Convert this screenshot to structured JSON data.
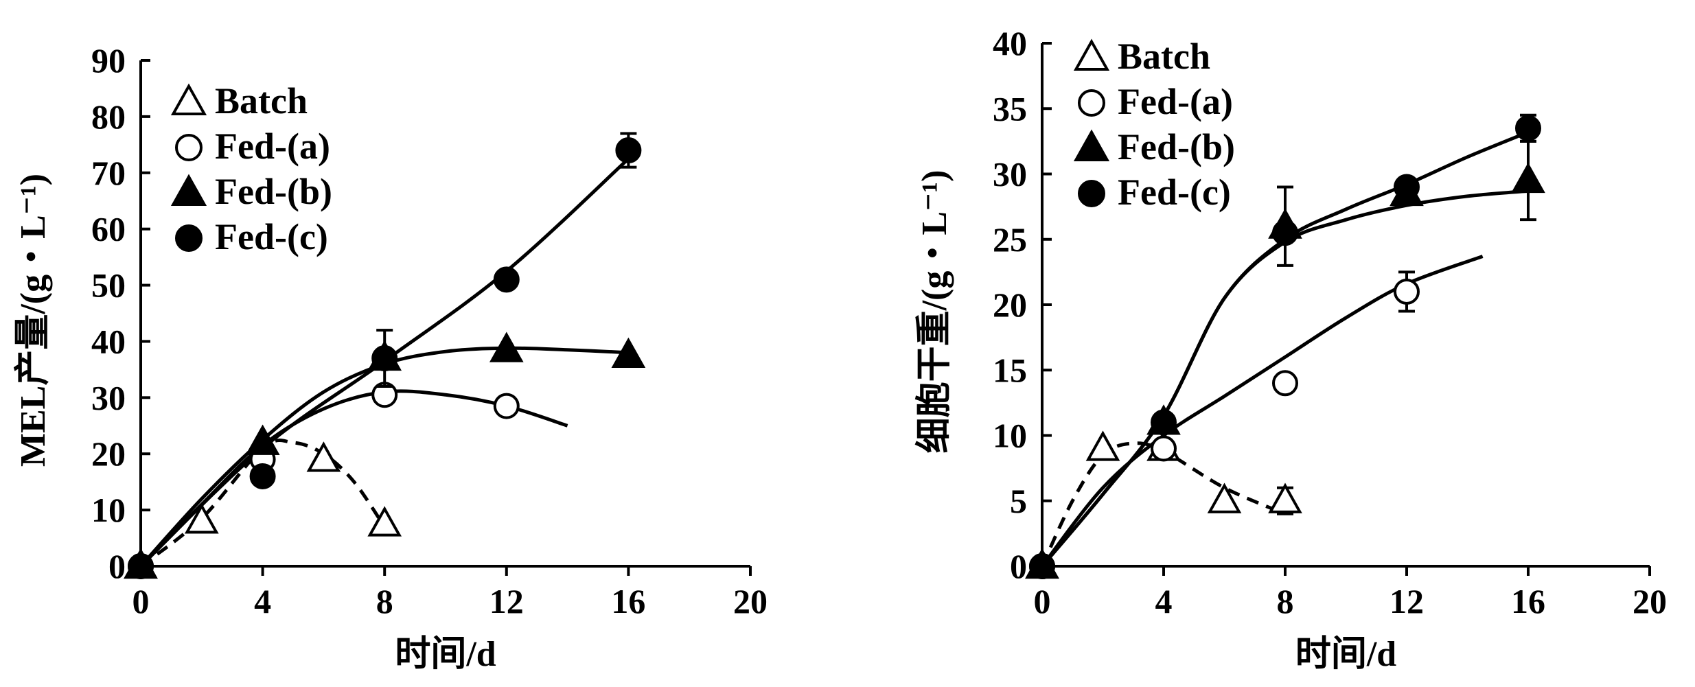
{
  "chart_data": [
    {
      "type": "scatter",
      "xlabel": "时间/d",
      "ylabel": "MEL产量/(g・L⁻¹)",
      "xlim": [
        0,
        20
      ],
      "ylim": [
        0,
        90
      ],
      "xticks": [
        0,
        4,
        8,
        12,
        16,
        20
      ],
      "yticks": [
        0,
        10,
        20,
        30,
        40,
        50,
        60,
        70,
        80,
        90
      ],
      "grid": false,
      "legend_position": "top-left",
      "series": [
        {
          "name": "Batch",
          "marker": "triangle-open",
          "x": [
            0,
            2,
            4,
            6,
            8
          ],
          "y": [
            0,
            8,
            22,
            19,
            7.5
          ],
          "error": [
            0,
            0,
            0,
            0,
            0
          ],
          "fit_line": "dashed",
          "fit": [
            [
              0,
              0
            ],
            [
              2,
              8.5
            ],
            [
              4,
              21
            ],
            [
              5,
              22
            ],
            [
              6,
              20
            ],
            [
              7,
              15
            ],
            [
              8,
              7
            ]
          ]
        },
        {
          "name": "Fed-(a)",
          "marker": "circle-open",
          "x": [
            0,
            4,
            8,
            12
          ],
          "y": [
            0,
            19,
            30.5,
            28.5
          ],
          "error": [
            0,
            0,
            0,
            0
          ],
          "fit_line": "solid",
          "fit": [
            [
              0,
              0
            ],
            [
              2,
              11
            ],
            [
              4,
              21.5
            ],
            [
              6,
              28
            ],
            [
              8,
              31
            ],
            [
              10,
              30.5
            ],
            [
              12,
              28.5
            ],
            [
              14,
              25
            ]
          ]
        },
        {
          "name": "Fed-(b)",
          "marker": "triangle-filled",
          "x": [
            0,
            4,
            8,
            12,
            16
          ],
          "y": [
            0,
            22,
            37,
            38.5,
            37.5
          ],
          "error": [
            0,
            0,
            0,
            0,
            0
          ],
          "fit_line": "solid",
          "fit": [
            [
              0,
              0
            ],
            [
              2,
              12
            ],
            [
              4,
              22.5
            ],
            [
              6,
              31
            ],
            [
              8,
              36
            ],
            [
              10,
              38.2
            ],
            [
              12,
              38.8
            ],
            [
              14,
              38.5
            ],
            [
              16,
              38
            ]
          ]
        },
        {
          "name": "Fed-(c)",
          "marker": "circle-filled",
          "x": [
            0,
            4,
            8,
            12,
            16
          ],
          "y": [
            0,
            16,
            37,
            51,
            74
          ],
          "error": [
            0,
            0,
            5,
            0,
            3
          ],
          "fit_line": "solid",
          "fit": [
            [
              0,
              0
            ],
            [
              4,
              21
            ],
            [
              8,
              36.5
            ],
            [
              12,
              52.5
            ],
            [
              16,
              72.5
            ]
          ]
        }
      ]
    },
    {
      "type": "scatter",
      "xlabel": "时间/d",
      "ylabel": "细胞干重/(g・L⁻¹)",
      "xlim": [
        0,
        20
      ],
      "ylim": [
        0,
        40
      ],
      "xticks": [
        0,
        4,
        8,
        12,
        16,
        20
      ],
      "yticks": [
        0,
        5,
        10,
        15,
        20,
        25,
        30,
        35,
        40
      ],
      "grid": false,
      "legend_position": "top-left",
      "series": [
        {
          "name": "Batch",
          "marker": "triangle-open",
          "x": [
            0,
            2,
            4,
            6,
            8
          ],
          "y": [
            0,
            9,
            9,
            5,
            5
          ],
          "error": [
            0,
            0,
            0,
            0,
            1
          ],
          "fit_line": "dashed",
          "fit": [
            [
              0,
              0
            ],
            [
              1,
              5
            ],
            [
              2,
              8.5
            ],
            [
              3,
              9.4
            ],
            [
              4,
              8.8
            ],
            [
              6,
              6
            ],
            [
              8,
              4
            ]
          ]
        },
        {
          "name": "Fed-(a)",
          "marker": "circle-open",
          "x": [
            0,
            4,
            8,
            12
          ],
          "y": [
            0,
            9,
            14,
            21
          ],
          "error": [
            0,
            0,
            0,
            1.5
          ],
          "fit_line": "solid",
          "fit": [
            [
              0,
              0
            ],
            [
              2,
              6
            ],
            [
              4,
              10
            ],
            [
              6,
              13
            ],
            [
              8,
              16
            ],
            [
              10,
              19
            ],
            [
              12,
              21.6
            ],
            [
              14.5,
              23.7
            ]
          ]
        },
        {
          "name": "Fed-(b)",
          "marker": "triangle-filled",
          "x": [
            0,
            4,
            8,
            12,
            16
          ],
          "y": [
            0,
            11,
            26,
            28.5,
            29.5
          ],
          "error": [
            0,
            0,
            3,
            0,
            3
          ],
          "fit_line": "solid",
          "fit": [
            [
              0,
              0
            ],
            [
              2,
              5.5
            ],
            [
              4,
              11.5
            ],
            [
              6,
              20.5
            ],
            [
              8,
              24.8
            ],
            [
              10,
              26.5
            ],
            [
              12,
              27.6
            ],
            [
              14,
              28.3
            ],
            [
              16,
              28.7
            ]
          ]
        },
        {
          "name": "Fed-(c)",
          "marker": "circle-filled",
          "x": [
            0,
            4,
            8,
            12,
            16
          ],
          "y": [
            0,
            11,
            25.5,
            29,
            33.5
          ],
          "error": [
            0,
            0,
            0,
            0,
            1
          ],
          "fit_line": "solid",
          "fit": [
            [
              0,
              0
            ],
            [
              2,
              5.5
            ],
            [
              4,
              11.5
            ],
            [
              6,
              20.5
            ],
            [
              8,
              25
            ],
            [
              10,
              27.3
            ],
            [
              12,
              29.2
            ],
            [
              14,
              31.3
            ],
            [
              16,
              33.2
            ]
          ]
        }
      ]
    }
  ]
}
